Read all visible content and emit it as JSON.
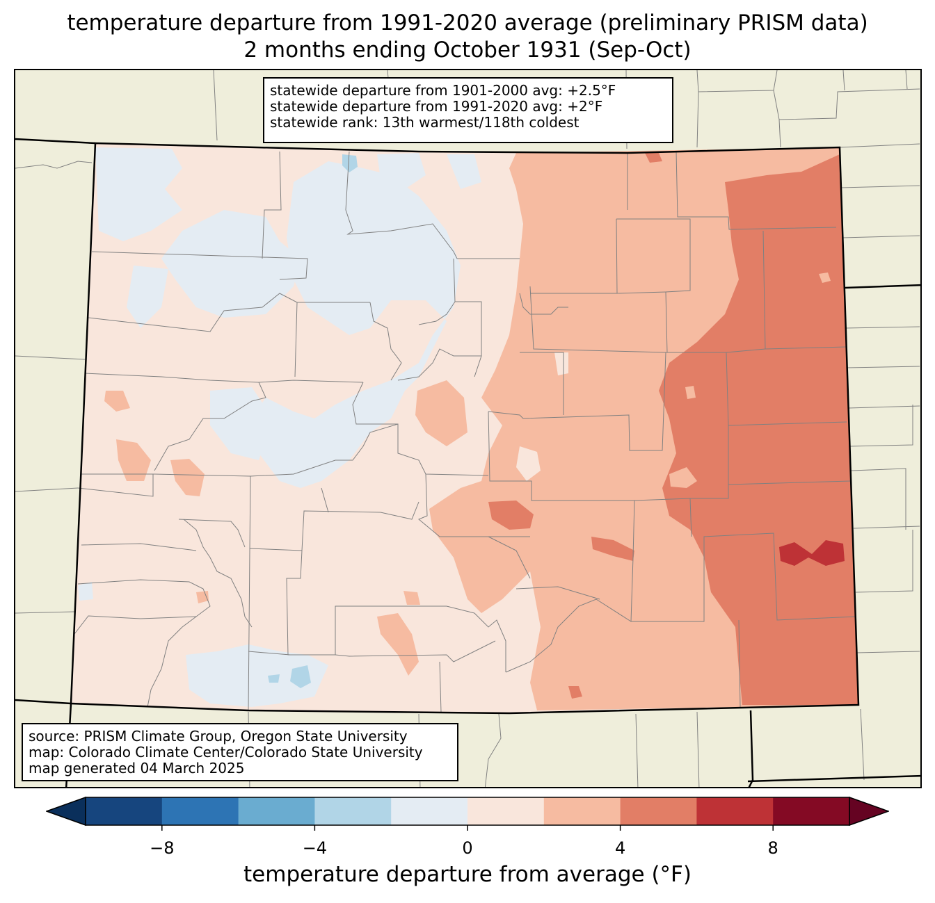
{
  "title": {
    "line1": "temperature departure from 1991-2020 average (preliminary PRISM data)",
    "line2": "2 months ending October 1931 (Sep-Oct)"
  },
  "stats": {
    "line1": "statewide departure from 1901-2000 avg: +2.5°F",
    "line2": "statewide departure from 1991-2020 avg: +2°F",
    "line3": "statewide rank: 13th warmest/118th coldest"
  },
  "source": {
    "line1": "source: PRISM Climate Group, Oregon State University",
    "line2": "map: Colorado Climate Center/Colorado State University",
    "line3": "map generated 04 March 2025"
  },
  "colorbar": {
    "label": "temperature departure from average (°F)",
    "bins": [
      -10,
      -8,
      -6,
      -4,
      -2,
      0,
      2,
      4,
      6,
      8,
      10
    ],
    "colors": [
      "#16457e",
      "#2d74b4",
      "#6aacd0",
      "#b1d5e7",
      "#e4ecf3",
      "#f9e6dc",
      "#f6bba1",
      "#e27e66",
      "#be3236",
      "#840a24"
    ],
    "extend_low_color": "#0a2f5b",
    "extend_high_color": "#650322",
    "ticks": [
      {
        "value": -8,
        "label": "−8"
      },
      {
        "value": -4,
        "label": "−4"
      },
      {
        "value": 0,
        "label": "0"
      },
      {
        "value": 4,
        "label": "4"
      },
      {
        "value": 8,
        "label": "8"
      }
    ]
  },
  "map": {
    "land_color": "#efeedb",
    "state_border_color": "#000000",
    "county_line_color": "#808080",
    "regions": [
      {
        "name": "west-slope-base",
        "departure_bin": "0 to 2"
      },
      {
        "name": "mountains-cool",
        "departure_bin": "-2 to 0"
      },
      {
        "name": "front-range-warm",
        "departure_bin": "2 to 4"
      },
      {
        "name": "eastern-plains-warmer",
        "departure_bin": "4 to 6"
      },
      {
        "name": "southeast-hotspot",
        "departure_bin": "6 to 8"
      }
    ]
  }
}
